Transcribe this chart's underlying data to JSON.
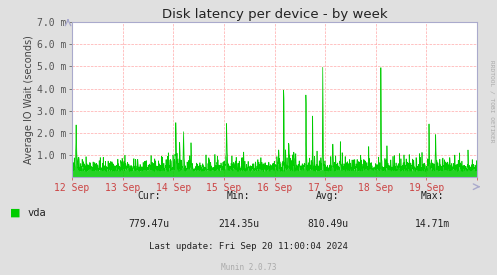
{
  "title": "Disk latency per device - by week",
  "ylabel": "Average IO Wait (seconds)",
  "background_color": "#e0e0e0",
  "plot_background_color": "#ffffff",
  "line_color": "#00cc00",
  "grid_color": "#ffaaaa",
  "axis_color": "#aaaacc",
  "text_color": "#333333",
  "ylim": [
    0,
    0.007
  ],
  "yticks": [
    0.001,
    0.002,
    0.003,
    0.004,
    0.005,
    0.006,
    0.007
  ],
  "ytick_labels": [
    "1.0 m",
    "2.0 m",
    "3.0 m",
    "4.0 m",
    "5.0 m",
    "6.0 m",
    "7.0 m"
  ],
  "xticklabels": [
    "12 Sep",
    "13 Sep",
    "14 Sep",
    "15 Sep",
    "16 Sep",
    "17 Sep",
    "18 Sep",
    "19 Sep"
  ],
  "legend_label": "vda",
  "legend_color": "#00cc00",
  "cur_label": "Cur:",
  "cur_value": "779.47u",
  "min_label": "Min:",
  "min_value": "214.35u",
  "avg_label": "Avg:",
  "avg_value": "810.49u",
  "max_label": "Max:",
  "max_value": "14.71m",
  "last_update": "Last update: Fri Sep 20 11:00:04 2024",
  "munin_version": "Munin 2.0.73",
  "rrdtool_label": "RRDTOOL / TOBI OETIKER"
}
